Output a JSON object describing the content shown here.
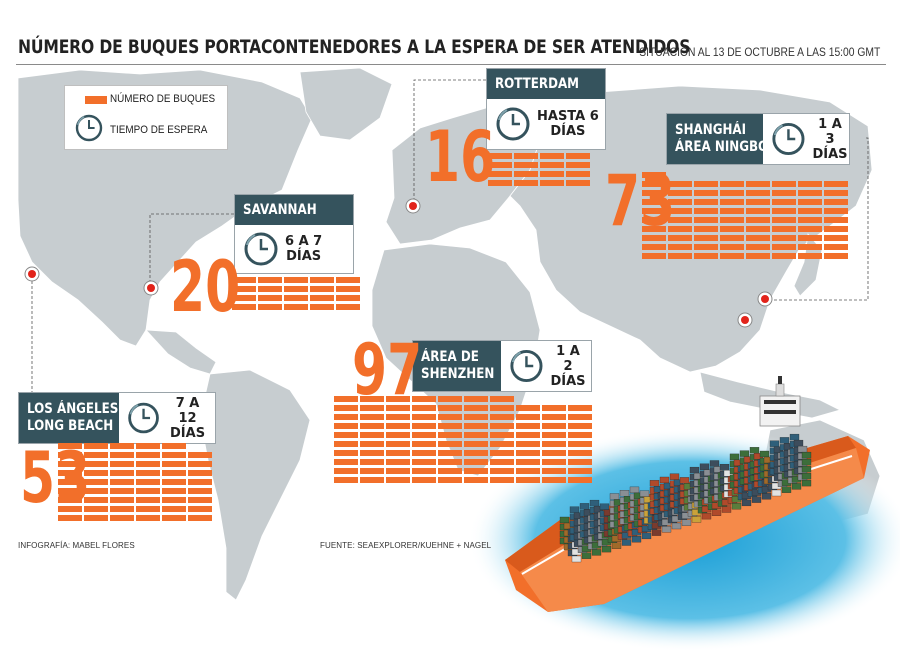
{
  "header": {
    "title": "NÚMERO DE BUQUES PORTACONTENEDORES A LA ESPERA DE SER ATENDIDOS",
    "subtitle": "SITUACIÓN AL 13 DE OCTUBRE A LAS 15:00 GMT"
  },
  "legend": {
    "ships_label": "NÚMERO DE BUQUES",
    "wait_label": "TIEMPO DE ESPERA"
  },
  "colors": {
    "accent": "#f26f2a",
    "label_bg": "#35535d",
    "map": "#c7cdd0",
    "marker": "#e2231a"
  },
  "ports": {
    "rotterdam": {
      "name": "ROTTERDAM",
      "wait": "HASTA 6\nDÍAS",
      "ships": 16
    },
    "shanghai": {
      "name_line1": "SHANGHÁI",
      "name_line2": "ÁREA NINGBO",
      "wait": "1 A 3\nDÍAS",
      "ships": 73
    },
    "savannah": {
      "name": "SAVANNAH",
      "wait": "6 A 7\nDÍAS",
      "ships": 20
    },
    "shenzhen": {
      "name_line1": "ÁREA DE",
      "name_line2": "SHENZHEN",
      "wait": "1 A 2\nDÍAS",
      "ships": 97
    },
    "losangeles": {
      "name_line1": "LOS ÁNGELES",
      "name_line2": "LONG BEACH",
      "wait": "7 A 12\nDÍAS",
      "ships": 53
    }
  },
  "footer": {
    "author": "INFOGRAFÍA: MABEL FLORES",
    "source": "FUENTE: SEAEXPLORER/KUEHNE + NAGEL"
  }
}
